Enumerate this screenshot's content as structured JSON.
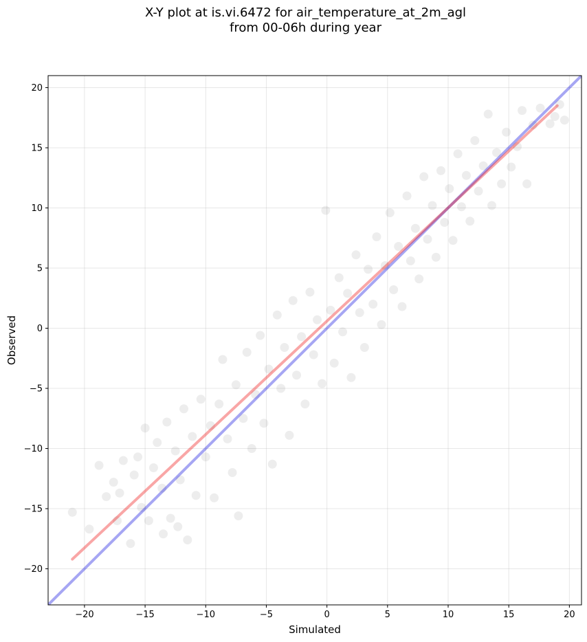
{
  "chart_data": {
    "type": "scatter",
    "title_lines": [
      "X-Y plot at is.vi.6472 for air_temperature_at_2m_agl",
      "from 00-06h during year"
    ],
    "xlabel": "Simulated",
    "ylabel": "Observed",
    "xlim": [
      -23,
      21
    ],
    "ylim": [
      -23,
      21
    ],
    "xticks": [
      -20,
      -15,
      -10,
      -5,
      0,
      5,
      10,
      15,
      20
    ],
    "yticks": [
      -20,
      -15,
      -10,
      -5,
      0,
      5,
      10,
      15,
      20
    ],
    "xtick_labels": [
      "−20",
      "−15",
      "−10",
      "−5",
      "0",
      "5",
      "10",
      "15",
      "20"
    ],
    "ytick_labels": [
      "−20",
      "−15",
      "−10",
      "−5",
      "0",
      "5",
      "10",
      "15",
      "20"
    ],
    "grid": true,
    "point_color": "#000000",
    "series": [
      {
        "kind": "points",
        "points": [
          [
            -21.0,
            -15.3
          ],
          [
            -18.8,
            -11.4
          ],
          [
            -18.2,
            -14.0
          ],
          [
            -17.6,
            -12.8
          ],
          [
            -17.1,
            -13.7
          ],
          [
            -16.8,
            -11.0
          ],
          [
            -16.2,
            -17.9
          ],
          [
            -15.9,
            -12.2
          ],
          [
            -15.6,
            -10.7
          ],
          [
            -15.3,
            -14.9
          ],
          [
            -15.0,
            -8.3
          ],
          [
            -14.7,
            -16.0
          ],
          [
            -14.3,
            -11.6
          ],
          [
            -14.0,
            -9.5
          ],
          [
            -13.6,
            -13.3
          ],
          [
            -13.2,
            -7.8
          ],
          [
            -12.9,
            -15.8
          ],
          [
            -12.5,
            -10.2
          ],
          [
            -12.1,
            -12.6
          ],
          [
            -11.8,
            -6.7
          ],
          [
            -11.5,
            -17.6
          ],
          [
            -11.1,
            -9.0
          ],
          [
            -10.8,
            -13.9
          ],
          [
            -10.4,
            -5.9
          ],
          [
            -10.0,
            -10.7
          ],
          [
            -9.6,
            -8.1
          ],
          [
            -9.3,
            -14.1
          ],
          [
            -8.9,
            -6.3
          ],
          [
            -8.6,
            -2.6
          ],
          [
            -8.2,
            -9.2
          ],
          [
            -7.8,
            -12.0
          ],
          [
            -7.5,
            -4.7
          ],
          [
            -7.3,
            -15.6
          ],
          [
            -6.9,
            -7.5
          ],
          [
            -6.6,
            -2.0
          ],
          [
            -6.2,
            -10.0
          ],
          [
            -5.9,
            -5.5
          ],
          [
            -5.5,
            -0.6
          ],
          [
            -5.2,
            -7.9
          ],
          [
            -4.8,
            -3.4
          ],
          [
            -4.5,
            -11.3
          ],
          [
            -4.1,
            1.1
          ],
          [
            -3.8,
            -5.0
          ],
          [
            -3.5,
            -1.6
          ],
          [
            -3.1,
            -8.9
          ],
          [
            -2.8,
            2.3
          ],
          [
            -2.5,
            -3.9
          ],
          [
            -2.1,
            -0.7
          ],
          [
            -1.8,
            -6.3
          ],
          [
            -1.4,
            3.0
          ],
          [
            -1.1,
            -2.2
          ],
          [
            -0.8,
            0.7
          ],
          [
            -0.4,
            -4.6
          ],
          [
            -0.1,
            9.8
          ],
          [
            0.3,
            1.5
          ],
          [
            0.6,
            -2.9
          ],
          [
            1.0,
            4.2
          ],
          [
            1.3,
            -0.3
          ],
          [
            1.7,
            2.9
          ],
          [
            2.0,
            -4.1
          ],
          [
            2.4,
            6.1
          ],
          [
            2.7,
            1.3
          ],
          [
            3.1,
            -1.6
          ],
          [
            3.4,
            4.9
          ],
          [
            3.8,
            2.0
          ],
          [
            4.1,
            7.6
          ],
          [
            4.5,
            0.3
          ],
          [
            4.8,
            5.2
          ],
          [
            5.2,
            9.6
          ],
          [
            5.5,
            3.2
          ],
          [
            5.9,
            6.8
          ],
          [
            6.2,
            1.8
          ],
          [
            6.6,
            11.0
          ],
          [
            6.9,
            5.6
          ],
          [
            7.3,
            8.3
          ],
          [
            7.6,
            4.1
          ],
          [
            8.0,
            12.6
          ],
          [
            8.3,
            7.4
          ],
          [
            8.7,
            10.2
          ],
          [
            9.0,
            5.9
          ],
          [
            9.4,
            13.1
          ],
          [
            9.7,
            8.8
          ],
          [
            10.1,
            11.6
          ],
          [
            10.4,
            7.3
          ],
          [
            10.8,
            14.5
          ],
          [
            11.1,
            10.1
          ],
          [
            11.5,
            12.7
          ],
          [
            11.8,
            8.9
          ],
          [
            12.2,
            15.6
          ],
          [
            12.5,
            11.4
          ],
          [
            12.9,
            13.5
          ],
          [
            13.3,
            17.8
          ],
          [
            13.6,
            10.2
          ],
          [
            14.0,
            14.6
          ],
          [
            14.4,
            12.0
          ],
          [
            14.8,
            16.3
          ],
          [
            15.2,
            13.4
          ],
          [
            15.7,
            15.1
          ],
          [
            16.1,
            18.1
          ],
          [
            16.5,
            12.0
          ],
          [
            17.0,
            16.9
          ],
          [
            17.6,
            18.3
          ],
          [
            18.4,
            17.0
          ],
          [
            18.8,
            17.6
          ],
          [
            19.2,
            18.6
          ],
          [
            19.6,
            17.3
          ],
          [
            -19.6,
            -16.7
          ],
          [
            -17.3,
            -16.0
          ],
          [
            -13.5,
            -17.1
          ],
          [
            -12.3,
            -16.5
          ]
        ]
      },
      {
        "kind": "line",
        "role": "identity (1:1)",
        "color": "#0000dd",
        "opacity": 0.35,
        "x": [
          -23,
          21
        ],
        "y": [
          -23,
          21
        ]
      },
      {
        "kind": "line",
        "role": "regression fit",
        "color": "#ee0000",
        "opacity": 0.35,
        "x": [
          -21,
          19
        ],
        "y": [
          -19.2,
          18.5
        ]
      }
    ]
  }
}
